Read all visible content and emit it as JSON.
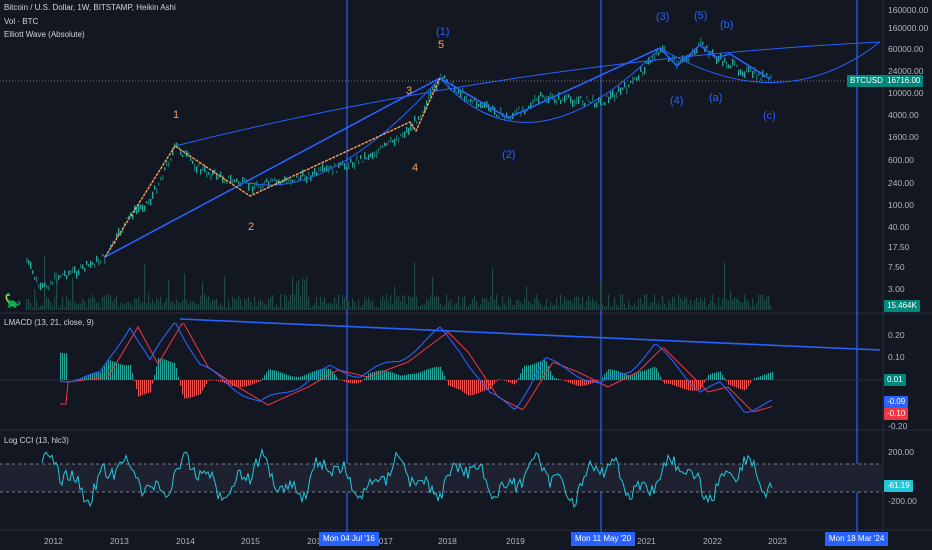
{
  "header": {
    "title": "Bitcoin / U.S. Dollar, 1W, BITSTAMP, Heikin Ashi",
    "vol": "Vol · BTC",
    "elliott": "Elliott Wave (Absolute)"
  },
  "price_axis": [
    "160000.00",
    "60000.00",
    "24000.00",
    "10000.00",
    "4000.00",
    "1600.00",
    "600.00",
    "240.00",
    "100.00",
    "40.00",
    "17.50",
    "7.50",
    "3.00"
  ],
  "price_tags": {
    "symbol": "BTCUSD",
    "last": "16716.00",
    "volume": "15.464K"
  },
  "macd": {
    "title": "LMACD (13, 21, close, 9)",
    "axis": [
      "0.20",
      "0.10",
      "-0.20"
    ],
    "tags": {
      "hist": "0.01",
      "macd": "-0.09",
      "signal": "-0.10"
    }
  },
  "cci": {
    "title": "Log CCI (13, hlc3)",
    "axis": [
      "200.00",
      "-200.00"
    ],
    "tag": "-61.19"
  },
  "time_axis": [
    "2012",
    "2013",
    "2014",
    "2015",
    "201",
    "2017",
    "2018",
    "2019",
    "2021",
    "2022",
    "2023"
  ],
  "date_tags": [
    "Mon 04 Jul '16",
    "Mon 11 May '20",
    "Mon 18 Mar '24"
  ],
  "wave_labels": {
    "orange": [
      "1",
      "2",
      "3",
      "4",
      "5"
    ],
    "blue": [
      "(1)",
      "(2)",
      "(3)",
      "(4)",
      "(5)",
      "(a)",
      "(b)",
      "(c)"
    ]
  },
  "colors": {
    "background": "#131722",
    "orange": "#f5a05c",
    "blue": "#2962ff",
    "candle_up": "#26a69a",
    "macd": "#2962ff",
    "signal": "#f23645",
    "cci": "#26c6da"
  }
}
